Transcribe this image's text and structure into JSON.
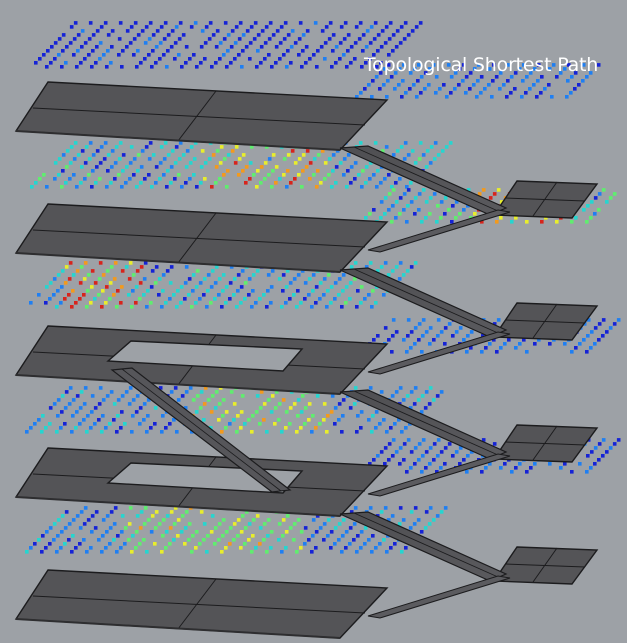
{
  "title": "Topological Shortest Path",
  "colors": {
    "background": "#9da1a6",
    "slab_fill": "#545457",
    "slab_edge": "#1c1c1e",
    "title_text": "#ffffff",
    "heatmap_scale": [
      "#1523d6",
      "#1f7ff2",
      "#25d6d0",
      "#5fee6f",
      "#e8ee2c",
      "#f39a1c",
      "#d7241c"
    ]
  },
  "model": {
    "floors": 5,
    "landings": 4,
    "floor_openings": 2,
    "dot_color_meaning": "relative path usage (blue = low, red = high)"
  }
}
